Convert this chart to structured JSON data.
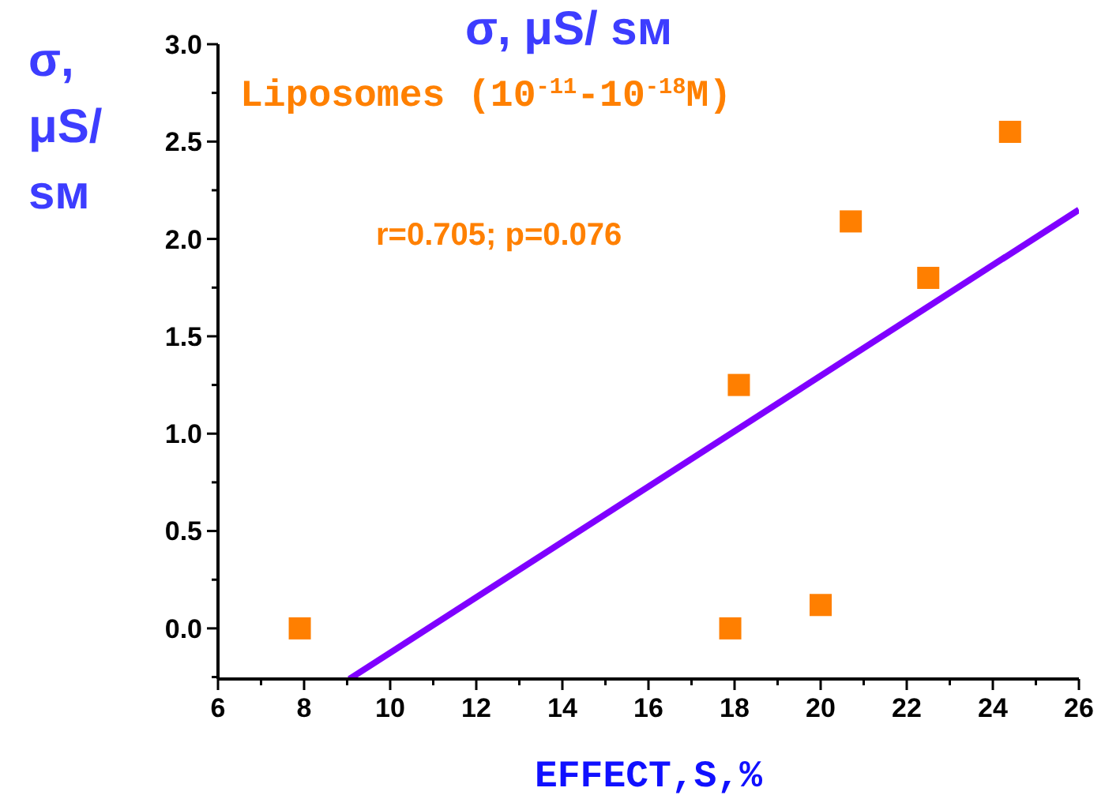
{
  "chart_data": {
    "type": "scatter",
    "title": "σ, μS/ sм",
    "subtitle": "Liposomes (10$^{-11}$-10$^{-18}$M)",
    "xlabel": "EFFECT,S,%",
    "ylabel": "σ, μS/ sм",
    "annotations": [
      "r=0.705; p=0.076"
    ],
    "marker": "square",
    "series": [
      {
        "color": "#ff7f00",
        "x": [
          7.9,
          17.9,
          18.1,
          20.0,
          20.7,
          22.5,
          24.4
        ],
        "values": [
          0,
          0,
          1.25,
          0.12,
          2.09,
          1.8,
          2.55
        ]
      },
      {
        "type": "line",
        "color": "#7f00ff",
        "marker": "none",
        "x": [
          9.05,
          26
        ],
        "values": [
          -0.26,
          2.15
        ]
      }
    ],
    "xlim": [
      6,
      26
    ],
    "xticks": [
      6,
      {
        "value": 7,
        "label": null
      },
      8,
      {
        "value": 9,
        "label": null
      },
      10,
      {
        "value": 11,
        "label": null
      },
      12,
      {
        "value": 13,
        "label": null
      },
      14,
      {
        "value": 15,
        "label": null
      },
      16,
      {
        "value": 17,
        "label": null
      },
      18,
      {
        "value": 19,
        "label": null
      },
      20,
      {
        "value": 21,
        "label": null
      },
      22,
      {
        "value": 23,
        "label": null
      },
      24,
      {
        "value": 25,
        "label": null
      },
      26
    ],
    "ylim": [
      -0.26,
      3.0
    ],
    "yticks": [
      {
        "value": -0.25,
        "label": null
      },
      {
        "value": 0,
        "label": "0.0"
      },
      {
        "value": 0.25,
        "label": null
      },
      0.5,
      {
        "value": 0.75,
        "label": null
      },
      {
        "value": 1,
        "label": "1.0"
      },
      {
        "value": 1.25,
        "label": null
      },
      1.5,
      {
        "value": 1.75,
        "label": null
      },
      {
        "value": 2,
        "label": "2.0"
      },
      {
        "value": 2.25,
        "label": null
      },
      2.5,
      {
        "value": 2.75,
        "label": null
      },
      {
        "value": 3,
        "label": "3.0"
      }
    ],
    "grid": false
  }
}
